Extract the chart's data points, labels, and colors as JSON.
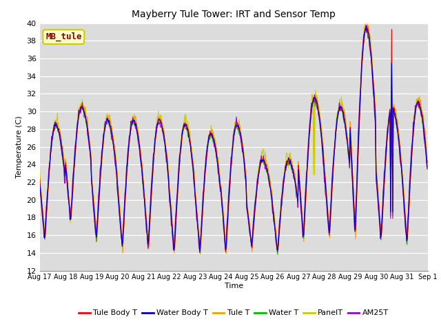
{
  "title": "Mayberry Tule Tower: IRT and Sensor Temp",
  "xlabel": "Time",
  "ylabel": "Temperature (C)",
  "ylim": [
    12,
    40
  ],
  "yticks": [
    12,
    14,
    16,
    18,
    20,
    22,
    24,
    26,
    28,
    30,
    32,
    34,
    36,
    38,
    40
  ],
  "bg_color": "#dcdcdc",
  "legend_labels": [
    "Tule Body T",
    "Water Body T",
    "Tule T",
    "Water T",
    "PanelT",
    "AM25T"
  ],
  "legend_colors": [
    "#ff0000",
    "#0000cd",
    "#ff9900",
    "#00bb00",
    "#cccc00",
    "#9900cc"
  ],
  "annotation_text": "MB_tule",
  "annotation_color": "#8b0000",
  "annotation_bg": "#ffffcc",
  "annotation_border": "#cccc00",
  "n_days": 15,
  "n_per_day": 48,
  "day_start": 17,
  "peaks": [
    28.5,
    30.5,
    29.0,
    29.0,
    29.0,
    28.5,
    27.5,
    28.5,
    24.5,
    24.5,
    31.5,
    30.5,
    39.5,
    30.5,
    31.0
  ],
  "troughs": [
    15.5,
    17.5,
    15.5,
    14.5,
    14.5,
    14.0,
    14.0,
    14.0,
    14.5,
    14.0,
    15.5,
    16.0,
    16.0,
    15.5,
    15.0
  ],
  "linewidth": 0.8,
  "font_size": 8,
  "title_fontsize": 10
}
